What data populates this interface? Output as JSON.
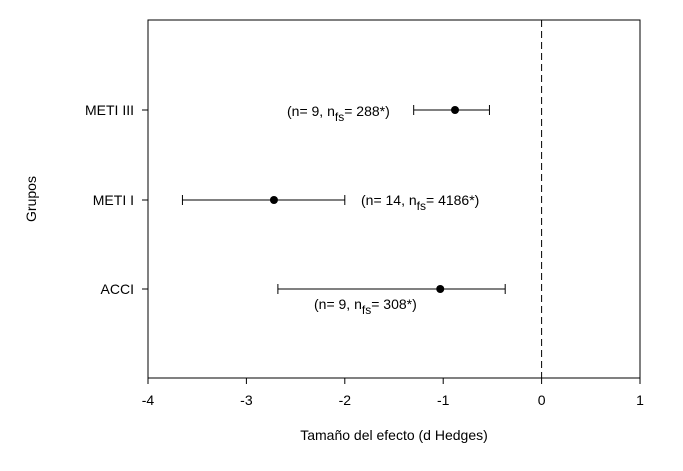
{
  "chart_data": {
    "type": "scatter",
    "subtype": "forest-plot",
    "title": "",
    "xlabel": "Tamaño del efecto (d Hedges)",
    "ylabel": "Grupos",
    "xlim": [
      -4,
      1
    ],
    "xticks": [
      -4,
      -3,
      -2,
      -1,
      0,
      1
    ],
    "xtick_labels": [
      "-4",
      "-3",
      "-2",
      "-1",
      "0",
      "1"
    ],
    "reference_line": {
      "x": 0,
      "style": "dashed"
    },
    "grid": false,
    "legend": "none",
    "point_color": "#000000",
    "categories": [
      "METI III",
      "METI I",
      "ACCI"
    ],
    "points": [
      {
        "group": "METI III",
        "estimate": -0.88,
        "ci_low": -1.3,
        "ci_high": -0.53,
        "annotation": {
          "pre": "(n= 9, n",
          "sub": "fs",
          "post": "= 288*)"
        }
      },
      {
        "group": "METI I",
        "estimate": -2.72,
        "ci_low": -3.65,
        "ci_high": -2.0,
        "annotation": {
          "pre": "(n= 14, n",
          "sub": "fs",
          "post": "= 4186*)"
        }
      },
      {
        "group": "ACCI",
        "estimate": -1.03,
        "ci_low": -2.68,
        "ci_high": -0.37,
        "annotation": {
          "pre": "(n= 9, n",
          "sub": "fs",
          "post": "= 308*)"
        }
      }
    ]
  }
}
